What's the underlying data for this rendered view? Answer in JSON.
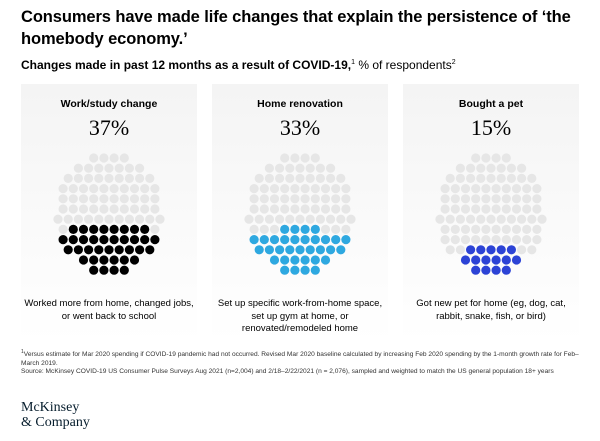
{
  "header": {
    "title": "Consumers have made life changes that explain the persistence of ‘the homebody economy.’",
    "subtitle_bold": "Changes made in past 12 months as a result of COVID-19,",
    "subtitle_sup1": "1",
    "subtitle_rest": " % of respondents",
    "subtitle_sup2": "2"
  },
  "chart_data": {
    "type": "dot-matrix",
    "unit": "% of respondents",
    "total_dots": 100,
    "panels": [
      {
        "label": "Work/study change",
        "value": 37,
        "value_label": "37%",
        "color": "#000000",
        "description": "Worked more from home, changed jobs, or went back to school"
      },
      {
        "label": "Home renovation",
        "value": 33,
        "value_label": "33%",
        "color": "#2ea8e0",
        "description": "Set up specific work-from-home space, set up gym at home, or renovated/remodeled home"
      },
      {
        "label": "Bought a pet",
        "value": 15,
        "value_label": "15%",
        "color": "#2c43d6",
        "description": "Got new pet for home (eg, dog, cat, rabbit, snake, fish, or bird)"
      }
    ],
    "background_dot_color": "#e6e6e6"
  },
  "footnotes": {
    "note1_marker": "1",
    "note1": "Versus estimate for Mar 2020 spending if COVID-19 pandemic had not occurred. Revised Mar 2020 baseline calculated by increasing Feb 2020 spending by the 1-month growth rate for Feb–March 2019.",
    "source": "Source: McKinsey COVID-19 US Consumer Pulse Surveys Aug 2021 (n=2,004) and 2/18–2/22/2021 (n = 2,076), sampled and weighted to match the US general population 18+ years"
  },
  "logo": {
    "line1": "McKinsey",
    "line2": "& Company"
  }
}
